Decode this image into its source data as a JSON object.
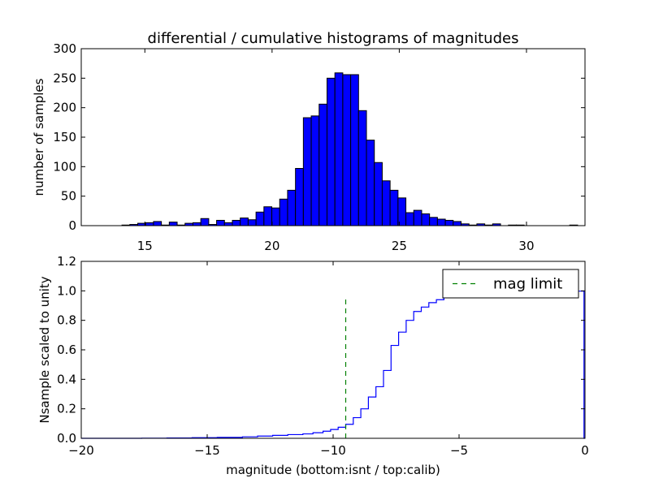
{
  "chart_data": [
    {
      "type": "bar",
      "title": "differential / cumulative histograms of magnitudes",
      "xlabel": "",
      "ylabel": "number of samples",
      "xlim": [
        12.5,
        32.3
      ],
      "ylim": [
        0,
        300
      ],
      "xticks": [
        15,
        20,
        25,
        30
      ],
      "yticks": [
        0,
        50,
        100,
        150,
        200,
        250,
        300
      ],
      "bar_color": "#0000ff",
      "bin_width": 0.31,
      "bins": [
        {
          "x": 14.1,
          "y": 1
        },
        {
          "x": 14.41,
          "y": 2
        },
        {
          "x": 14.72,
          "y": 4
        },
        {
          "x": 15.03,
          "y": 5
        },
        {
          "x": 15.34,
          "y": 7
        },
        {
          "x": 15.65,
          "y": 1
        },
        {
          "x": 15.96,
          "y": 6
        },
        {
          "x": 16.27,
          "y": 1
        },
        {
          "x": 16.58,
          "y": 4
        },
        {
          "x": 16.89,
          "y": 5
        },
        {
          "x": 17.2,
          "y": 12
        },
        {
          "x": 17.51,
          "y": 2
        },
        {
          "x": 17.82,
          "y": 9
        },
        {
          "x": 18.13,
          "y": 5
        },
        {
          "x": 18.44,
          "y": 9
        },
        {
          "x": 18.75,
          "y": 13
        },
        {
          "x": 19.06,
          "y": 10
        },
        {
          "x": 19.37,
          "y": 23
        },
        {
          "x": 19.68,
          "y": 32
        },
        {
          "x": 19.99,
          "y": 30
        },
        {
          "x": 20.3,
          "y": 45
        },
        {
          "x": 20.61,
          "y": 60
        },
        {
          "x": 20.92,
          "y": 97
        },
        {
          "x": 21.23,
          "y": 183
        },
        {
          "x": 21.54,
          "y": 186
        },
        {
          "x": 21.85,
          "y": 206
        },
        {
          "x": 22.16,
          "y": 250
        },
        {
          "x": 22.47,
          "y": 259
        },
        {
          "x": 22.78,
          "y": 256
        },
        {
          "x": 23.09,
          "y": 256
        },
        {
          "x": 23.4,
          "y": 195
        },
        {
          "x": 23.71,
          "y": 145
        },
        {
          "x": 24.02,
          "y": 107
        },
        {
          "x": 24.33,
          "y": 76
        },
        {
          "x": 24.64,
          "y": 60
        },
        {
          "x": 24.95,
          "y": 47
        },
        {
          "x": 25.26,
          "y": 22
        },
        {
          "x": 25.57,
          "y": 26
        },
        {
          "x": 25.88,
          "y": 20
        },
        {
          "x": 26.19,
          "y": 14
        },
        {
          "x": 26.5,
          "y": 11
        },
        {
          "x": 26.81,
          "y": 9
        },
        {
          "x": 27.12,
          "y": 7
        },
        {
          "x": 27.43,
          "y": 3
        },
        {
          "x": 27.74,
          "y": 1
        },
        {
          "x": 28.05,
          "y": 3
        },
        {
          "x": 28.36,
          "y": 1
        },
        {
          "x": 28.67,
          "y": 3
        },
        {
          "x": 29.29,
          "y": 1
        },
        {
          "x": 29.6,
          "y": 1
        },
        {
          "x": 31.7,
          "y": 1
        }
      ]
    },
    {
      "type": "line",
      "title": "",
      "xlabel": "magnitude (bottom:isnt / top:calib)",
      "ylabel": "Nsample scaled to unity",
      "xlim": [
        -20,
        0
      ],
      "ylim": [
        0,
        1.2
      ],
      "xticks": [
        -20,
        -15,
        -10,
        -5,
        0
      ],
      "yticks": [
        0.0,
        0.2,
        0.4,
        0.6,
        0.8,
        1.0,
        1.2
      ],
      "xtick_labels": [
        "−20",
        "−15",
        "−10",
        "−5",
        "0"
      ],
      "ytick_labels": [
        "0.0",
        "0.2",
        "0.4",
        "0.6",
        "0.8",
        "1.0",
        "1.2"
      ],
      "legend": {
        "placement": "top-right",
        "entries": [
          "mag limit"
        ]
      },
      "series": [
        {
          "name": "",
          "color": "#0000ff",
          "style": "steps-post",
          "x": [
            -20,
            -17.6,
            -16.6,
            -15.6,
            -14.6,
            -13.6,
            -13.0,
            -12.4,
            -11.8,
            -11.2,
            -10.8,
            -10.4,
            -10.1,
            -9.8,
            -9.5,
            -9.2,
            -8.9,
            -8.6,
            -8.3,
            -8.0,
            -7.7,
            -7.4,
            -7.1,
            -6.8,
            -6.5,
            -6.2,
            -5.9,
            -5.6,
            -5.3,
            -5.0,
            -4.0,
            -3.0,
            -2.0,
            -0.04,
            -0.04
          ],
          "y": [
            0.0,
            0.001,
            0.002,
            0.004,
            0.006,
            0.01,
            0.015,
            0.02,
            0.025,
            0.03,
            0.038,
            0.048,
            0.06,
            0.075,
            0.095,
            0.14,
            0.2,
            0.28,
            0.35,
            0.46,
            0.63,
            0.72,
            0.8,
            0.86,
            0.89,
            0.92,
            0.94,
            0.96,
            0.975,
            0.985,
            0.99,
            0.995,
            0.998,
            1.0,
            0.0
          ]
        },
        {
          "name": "mag limit",
          "color": "#008000",
          "style": "dashed",
          "x": [
            -9.5,
            -9.5
          ],
          "y": [
            0.0,
            0.96
          ]
        }
      ]
    }
  ]
}
